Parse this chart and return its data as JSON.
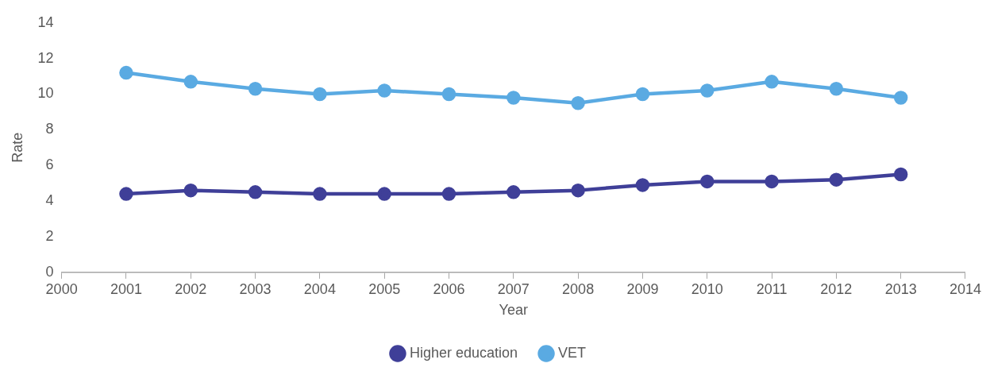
{
  "chart_data": {
    "type": "line",
    "xlabel": "Year",
    "ylabel": "Rate",
    "x": [
      2001,
      2002,
      2003,
      2004,
      2005,
      2006,
      2007,
      2008,
      2009,
      2010,
      2011,
      2012,
      2013
    ],
    "series": [
      {
        "name": "Higher education",
        "color": "#3f3f98",
        "values": [
          4.4,
          4.6,
          4.5,
          4.4,
          4.4,
          4.4,
          4.5,
          4.6,
          4.9,
          5.1,
          5.1,
          5.2,
          5.5
        ]
      },
      {
        "name": "VET",
        "color": "#5aaae2",
        "values": [
          11.2,
          10.7,
          10.3,
          10.0,
          10.2,
          10.0,
          9.8,
          9.5,
          10.0,
          10.2,
          10.7,
          10.3,
          9.8
        ]
      }
    ],
    "xlim": [
      2000,
      2014
    ],
    "xticks": [
      2000,
      2001,
      2002,
      2003,
      2004,
      2005,
      2006,
      2007,
      2008,
      2009,
      2010,
      2011,
      2012,
      2013,
      2014
    ],
    "ylim": [
      0,
      14
    ],
    "yticks": [
      0,
      2,
      4,
      6,
      8,
      10,
      12,
      14
    ],
    "grid": false,
    "legend": "bottom",
    "marker": "circle",
    "line_style": "solid"
  }
}
